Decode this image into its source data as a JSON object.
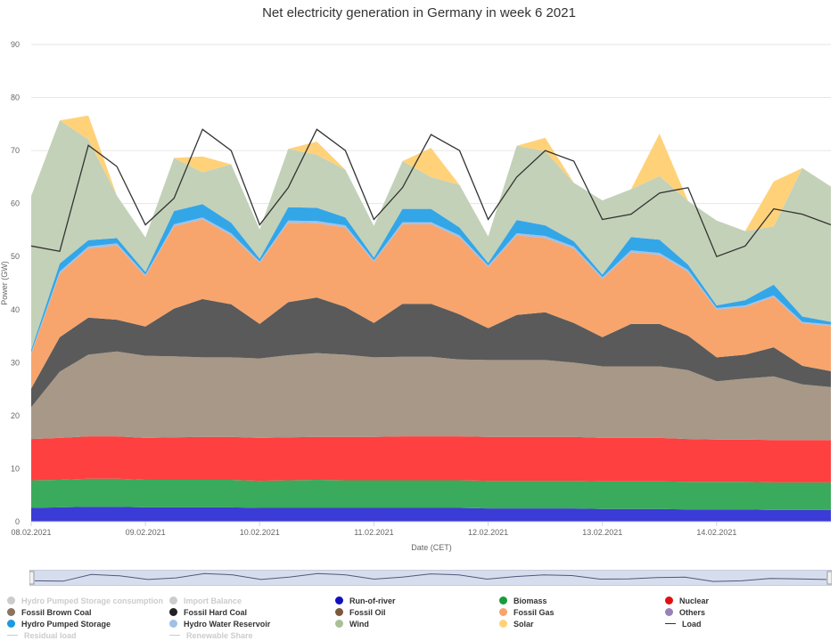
{
  "chart_data": {
    "type": "area",
    "title": "Net electricity generation in Germany in week 6 2021",
    "xlabel": "Date (CET)",
    "ylabel": "Power (GW)",
    "ylim": [
      0,
      90
    ],
    "yticks": [
      0,
      10,
      20,
      30,
      40,
      50,
      60,
      70,
      80,
      90
    ],
    "x": [
      0,
      6,
      12,
      18,
      24,
      30,
      36,
      42,
      48,
      54,
      60,
      66,
      72,
      78,
      84,
      90,
      96,
      102,
      108,
      114,
      120,
      126,
      132,
      138,
      144,
      150,
      156,
      162,
      168
    ],
    "xlim": [
      0,
      168
    ],
    "x_unit": "hours since 08.02.2021 00:00",
    "xticks": [
      {
        "x": 0,
        "label": "08.02.2021"
      },
      {
        "x": 24,
        "label": "09.02.2021"
      },
      {
        "x": 48,
        "label": "10.02.2021"
      },
      {
        "x": 72,
        "label": "11.02.2021"
      },
      {
        "x": 96,
        "label": "12.02.2021"
      },
      {
        "x": 120,
        "label": "13.02.2021"
      },
      {
        "x": 144,
        "label": "14.02.2021"
      }
    ],
    "series": [
      {
        "name": "Run-of-river",
        "color": "#3b3bd6",
        "values": [
          2.6,
          2.7,
          2.8,
          2.8,
          2.7,
          2.7,
          2.7,
          2.7,
          2.6,
          2.6,
          2.6,
          2.6,
          2.6,
          2.6,
          2.6,
          2.6,
          2.5,
          2.5,
          2.5,
          2.5,
          2.4,
          2.4,
          2.4,
          2.3,
          2.3,
          2.3,
          2.2,
          2.2,
          2.2
        ]
      },
      {
        "name": "Biomass",
        "color": "#3aaa5c",
        "values": [
          5.2,
          5.2,
          5.3,
          5.3,
          5.2,
          5.2,
          5.2,
          5.2,
          5.1,
          5.2,
          5.3,
          5.2,
          5.2,
          5.2,
          5.2,
          5.2,
          5.2,
          5.2,
          5.2,
          5.2,
          5.2,
          5.2,
          5.2,
          5.2,
          5.2,
          5.2,
          5.2,
          5.2,
          5.2
        ]
      },
      {
        "name": "Nuclear",
        "color": "#ff4040",
        "values": [
          7.8,
          7.9,
          8.0,
          8.0,
          7.9,
          8.0,
          8.1,
          8.1,
          8.1,
          8.1,
          8.1,
          8.2,
          8.2,
          8.3,
          8.3,
          8.3,
          8.3,
          8.3,
          8.3,
          8.3,
          8.2,
          8.2,
          8.2,
          8.1,
          8.0,
          8.0,
          8.0,
          8.0,
          8.0
        ]
      },
      {
        "name": "Fossil Brown Coal",
        "color": "#a89888",
        "values": [
          6.0,
          12.5,
          15.4,
          16.0,
          15.5,
          15.3,
          15.0,
          15.0,
          15.0,
          15.5,
          15.8,
          15.5,
          15.0,
          15.0,
          15.0,
          14.5,
          14.5,
          14.5,
          14.5,
          14.0,
          13.5,
          13.5,
          13.5,
          13.0,
          11.0,
          11.5,
          12.0,
          10.5,
          10.0
        ]
      },
      {
        "name": "Fossil Hard Coal",
        "color": "#5a5a5a",
        "values": [
          3.5,
          6.5,
          7.0,
          6.0,
          5.5,
          9.0,
          11.0,
          10.0,
          6.5,
          10.0,
          10.5,
          9.0,
          6.5,
          10.0,
          10.0,
          8.5,
          6.0,
          8.5,
          9.0,
          7.5,
          5.5,
          8.0,
          8.0,
          6.5,
          4.5,
          4.5,
          5.5,
          3.5,
          3.0
        ]
      },
      {
        "name": "Fossil Gas",
        "color": "#f7a56c",
        "values": [
          6.5,
          12.0,
          13.0,
          14.0,
          9.5,
          15.5,
          15.0,
          13.0,
          11.5,
          15.0,
          14.0,
          15.0,
          11.5,
          15.0,
          15.0,
          14.5,
          11.5,
          15.0,
          14.0,
          14.0,
          11.0,
          13.5,
          13.0,
          12.0,
          9.0,
          9.0,
          9.5,
          8.0,
          8.5
        ]
      },
      {
        "name": "Hydro Water Reservoir",
        "color": "#a0c0e8",
        "values": [
          0.3,
          0.4,
          0.4,
          0.4,
          0.3,
          0.4,
          0.4,
          0.4,
          0.3,
          0.4,
          0.4,
          0.4,
          0.3,
          0.4,
          0.4,
          0.4,
          0.3,
          0.4,
          0.4,
          0.4,
          0.3,
          0.4,
          0.4,
          0.4,
          0.3,
          0.3,
          0.3,
          0.3,
          0.3
        ]
      },
      {
        "name": "Hydro Pumped Storage",
        "color": "#33a6e8",
        "values": [
          0.5,
          1.5,
          1.2,
          1.0,
          0.5,
          2.5,
          2.5,
          2.0,
          0.5,
          2.5,
          2.5,
          1.5,
          0.5,
          2.5,
          2.5,
          1.5,
          0.5,
          2.5,
          2.0,
          1.0,
          0.5,
          2.5,
          2.5,
          1.0,
          0.5,
          1.0,
          2.0,
          1.0,
          0.5
        ]
      },
      {
        "name": "Wind",
        "color": "#c3d1b8",
        "values": [
          29.0,
          27.0,
          19.0,
          8.0,
          6.5,
          10.0,
          6.0,
          11.0,
          5.5,
          11.0,
          10.0,
          9.0,
          6.0,
          9.0,
          6.0,
          8.0,
          5.0,
          14.0,
          14.0,
          11.0,
          14.0,
          9.0,
          12.0,
          12.0,
          16.0,
          13.0,
          11.0,
          28.0,
          25.5
        ]
      },
      {
        "name": "Solar",
        "color": "#ffd27a",
        "values": [
          0,
          0,
          4.5,
          0,
          0,
          0,
          3.0,
          0,
          0,
          0,
          2.5,
          0,
          0,
          0,
          5.5,
          0,
          0,
          0,
          2.5,
          0,
          0,
          0,
          8.0,
          0,
          0,
          0,
          8.5,
          0,
          0
        ]
      }
    ],
    "load": {
      "name": "Load",
      "color": "#333333",
      "values": [
        52,
        51,
        71,
        67,
        56,
        61,
        74,
        70,
        56,
        63,
        74,
        70,
        57,
        63,
        73,
        70,
        57,
        65,
        70,
        68,
        57,
        58,
        62,
        63,
        50,
        52,
        59,
        58,
        56
      ]
    },
    "legend": [
      {
        "label": "Hydro Pumped Storage consumption",
        "marker": "dot",
        "color": "#cccccc",
        "visible": false
      },
      {
        "label": "Import Balance",
        "marker": "dot",
        "color": "#cccccc",
        "visible": false
      },
      {
        "label": "Run-of-river",
        "marker": "dot",
        "color": "#1010c0",
        "visible": true
      },
      {
        "label": "Biomass",
        "marker": "dot",
        "color": "#1a9a3a",
        "visible": true
      },
      {
        "label": "Nuclear",
        "marker": "dot",
        "color": "#e01010",
        "visible": true
      },
      {
        "label": "Fossil Brown Coal",
        "marker": "dot",
        "color": "#8b7360",
        "visible": true
      },
      {
        "label": "Fossil Hard Coal",
        "marker": "dot",
        "color": "#222222",
        "visible": true
      },
      {
        "label": "Fossil Oil",
        "marker": "dot",
        "color": "#7a5a3a",
        "visible": true
      },
      {
        "label": "Fossil Gas",
        "marker": "dot",
        "color": "#f7a56c",
        "visible": true
      },
      {
        "label": "Others",
        "marker": "dot",
        "color": "#9a80b8",
        "visible": true
      },
      {
        "label": "Hydro Pumped Storage",
        "marker": "dot",
        "color": "#1a9ae0",
        "visible": true
      },
      {
        "label": "Hydro Water Reservoir",
        "marker": "dot",
        "color": "#a0c0e8",
        "visible": true
      },
      {
        "label": "Wind",
        "marker": "dot",
        "color": "#a8c098",
        "visible": true
      },
      {
        "label": "Solar",
        "marker": "dot",
        "color": "#ffd27a",
        "visible": true
      },
      {
        "label": "Load",
        "marker": "line",
        "color": "#333333",
        "visible": true
      },
      {
        "label": "Residual load",
        "marker": "line",
        "color": "#cccccc",
        "visible": false
      },
      {
        "label": "Renewable Share",
        "marker": "line",
        "color": "#cccccc",
        "visible": false
      }
    ]
  }
}
